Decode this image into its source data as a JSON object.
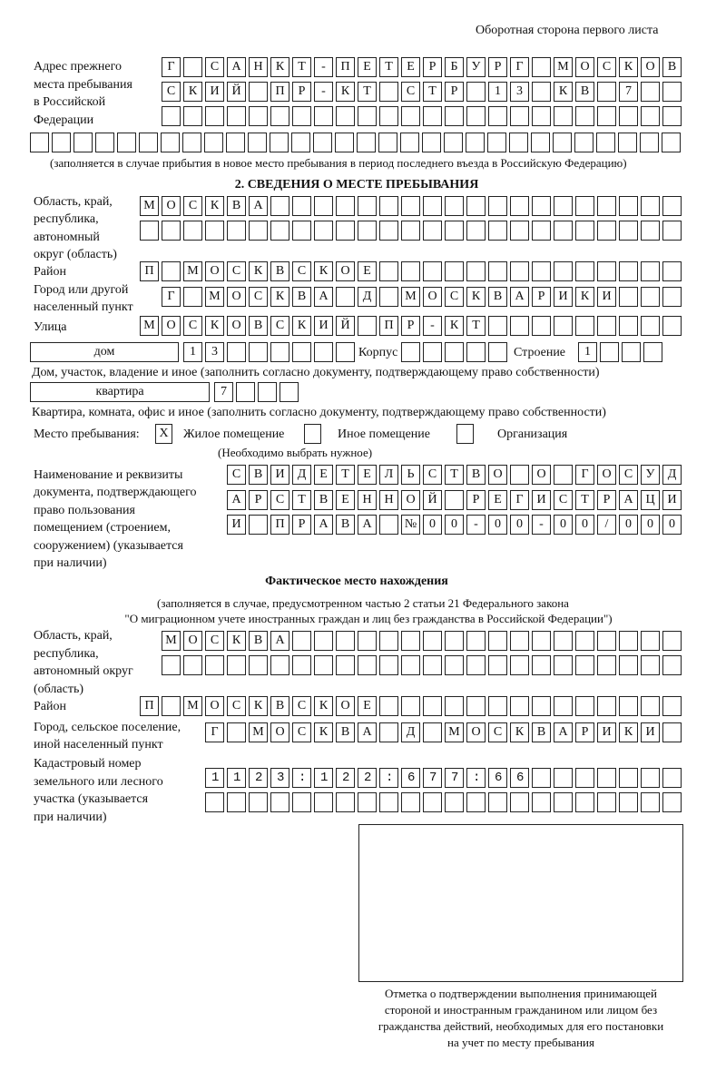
{
  "header": "Оборотная сторона первого листа",
  "previous_address": {
    "label": [
      "Адрес прежнего",
      "места пребывания",
      "в Российской",
      "Федерации"
    ],
    "rows": [
      "Г САНКТ-ПЕТЕРБУРГ МОСКОВ",
      "СКИЙ ПР-КТ СТР 13 КВ 7",
      "",
      ""
    ],
    "note": "(заполняется в случае прибытия в новое место пребывания в период последнего въезда в Российскую Федерацию)"
  },
  "section2": {
    "title": "2. СВЕДЕНИЯ О МЕСТЕ ПРЕБЫВАНИЯ",
    "region_label": [
      "Область, край,",
      "республика,",
      "автономный",
      "округ (область)"
    ],
    "region_rows": [
      "МОСКВА",
      ""
    ],
    "district_label": "Район",
    "district": "П МОСКВСКОЕ",
    "city_label": [
      "Город или другой",
      "населенный пункт"
    ],
    "city": "Г МОСКВА Д МОСКВАРИКИ",
    "street_label": "Улица",
    "street": "МОСКОВСКИЙ ПР-КТ",
    "house_type": "дом",
    "house": "13",
    "korpus_label": "Корпус",
    "korpus": "",
    "building_label": "Строение",
    "building": "1",
    "house_note": "Дом, участок, владение и иное (заполнить согласно документу, подтверждающему право собственности)",
    "apt_type": "квартира",
    "apt": "7",
    "apt_note": "Квартира, комната, офис и иное (заполнить согласно документу, подтверждающему право собственности)",
    "stay_label": "Место пребывания:",
    "stay_options": [
      {
        "label": "Жилое помещение",
        "mark": "X"
      },
      {
        "label": "Иное помещение",
        "mark": ""
      },
      {
        "label": "Организация",
        "mark": ""
      }
    ],
    "stay_note": "(Необходимо выбрать нужное)",
    "doc_label": [
      "Наименование и реквизиты",
      "документа, подтверждающего",
      "право пользования",
      "помещением (строением,",
      "сооружением) (указывается",
      "при наличии)"
    ],
    "doc_rows": [
      "СВИДЕТЕЛЬСТВО О ГОСУД",
      "АРСТВЕННОЙ РЕГИСТРАЦИ",
      "И ПРАВА №00-00-00/000"
    ]
  },
  "actual": {
    "title": "Фактическое место нахождения",
    "subtitle": [
      "(заполняется в случае, предусмотренном частью 2 статьи 21 Федерального закона",
      "\"О миграционном учете иностранных граждан и лиц без гражданства в Российской Федерации\")"
    ],
    "region_label": [
      "Область, край,",
      "республика,",
      "автономный округ",
      "(область)"
    ],
    "region_rows": [
      "МОСКВА",
      ""
    ],
    "district_label": "Район",
    "district": "П МОСКВСКОЕ",
    "city_label": [
      "Город, сельское поселение,",
      "иной населенный пункт"
    ],
    "city": "Г МОСКВА Д МОСКВАРИКИ",
    "cadastre_label": [
      "Кадастровый номер",
      "земельного или лесного",
      "участка (указывается",
      "при наличии)"
    ],
    "cadastre_rows": [
      "1123:122:677:66",
      ""
    ]
  },
  "confirmation": [
    "Отметка о подтверждении выполнения принимающей",
    "стороной и иностранным гражданином или лицом без",
    "гражданства действий, необходимых для его постановки",
    "на учет по месту пребывания"
  ]
}
